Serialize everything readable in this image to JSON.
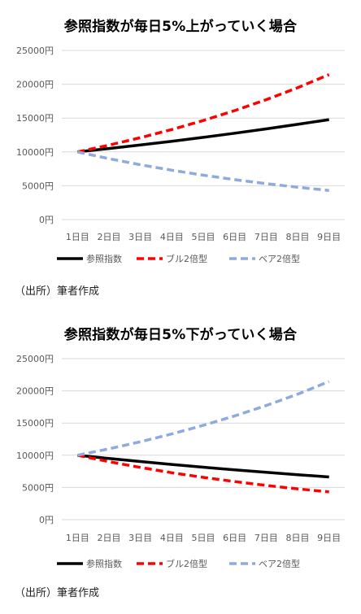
{
  "charts_text": [
    {
      "title": "参照指数が毎日5%上がっていく場合",
      "source": "（出所）筆者作成"
    },
    {
      "title": "参照指数が毎日5%下がっていく場合",
      "source": "（出所）筆者作成"
    }
  ],
  "chart_data": [
    {
      "type": "line",
      "title": "参照指数が毎日5%上がっていく場合",
      "categories": [
        "1日目",
        "2日目",
        "3日目",
        "4日目",
        "5日目",
        "6日目",
        "7日目",
        "8日目",
        "9日目"
      ],
      "y_ticks": [
        "0円",
        "5000円",
        "10000円",
        "15000円",
        "20000円",
        "25000円"
      ],
      "ylim": [
        0,
        25000
      ],
      "grid": true,
      "legend_position": "bottom",
      "series": [
        {
          "name": "参照指数",
          "color": "#000000",
          "style": "solid",
          "values": [
            10000,
            10500,
            11025,
            11576,
            12155,
            12763,
            13401,
            14071,
            14775
          ]
        },
        {
          "name": "ブル2倍型",
          "color": "#ff0000",
          "style": "dashed",
          "values": [
            10000,
            11000,
            12100,
            13310,
            14641,
            16105,
            17716,
            19487,
            21436
          ]
        },
        {
          "name": "ベア2倍型",
          "color": "#8faadc",
          "style": "dashed",
          "values": [
            10000,
            9000,
            8100,
            7290,
            6561,
            5905,
            5314,
            4783,
            4305
          ]
        }
      ]
    },
    {
      "type": "line",
      "title": "参照指数が毎日5%下がっていく場合",
      "categories": [
        "1日目",
        "2日目",
        "3日目",
        "4日目",
        "5日目",
        "6日目",
        "7日目",
        "8日目",
        "9日目"
      ],
      "y_ticks": [
        "0円",
        "5000円",
        "10000円",
        "15000円",
        "20000円",
        "25000円"
      ],
      "ylim": [
        0,
        25000
      ],
      "grid": true,
      "legend_position": "bottom",
      "series": [
        {
          "name": "参照指数",
          "color": "#000000",
          "style": "solid",
          "values": [
            10000,
            9500,
            9025,
            8574,
            8145,
            7738,
            7351,
            6983,
            6634
          ]
        },
        {
          "name": "ブル2倍型",
          "color": "#ff0000",
          "style": "dashed",
          "values": [
            10000,
            9000,
            8100,
            7290,
            6561,
            5905,
            5314,
            4783,
            4305
          ]
        },
        {
          "name": "ベア2倍型",
          "color": "#8faadc",
          "style": "dashed",
          "values": [
            10000,
            11000,
            12100,
            13310,
            14641,
            16105,
            17716,
            19487,
            21436
          ]
        }
      ]
    }
  ]
}
